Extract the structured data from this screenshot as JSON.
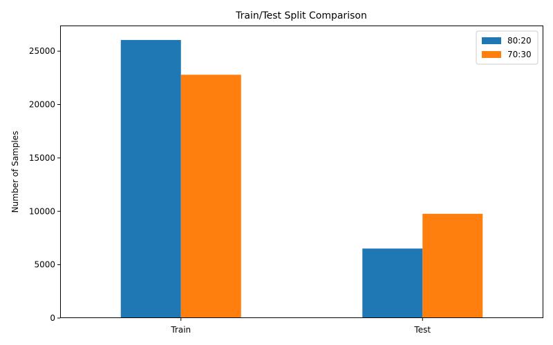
{
  "chart_data": {
    "type": "bar",
    "title": "Train/Test Split Comparison",
    "xlabel": "",
    "ylabel": "Number of Samples",
    "categories": [
      "Train",
      "Test"
    ],
    "series": [
      {
        "name": "80:20",
        "values": [
          26048,
          6513
        ],
        "color": "#1f77b4"
      },
      {
        "name": "70:30",
        "values": [
          22792,
          9769
        ],
        "color": "#ff7f0e"
      }
    ],
    "ylim": [
      0,
      27400
    ],
    "yticks": [
      0,
      5000,
      10000,
      15000,
      20000,
      25000
    ],
    "legend_position": "top-right",
    "grid": false
  }
}
